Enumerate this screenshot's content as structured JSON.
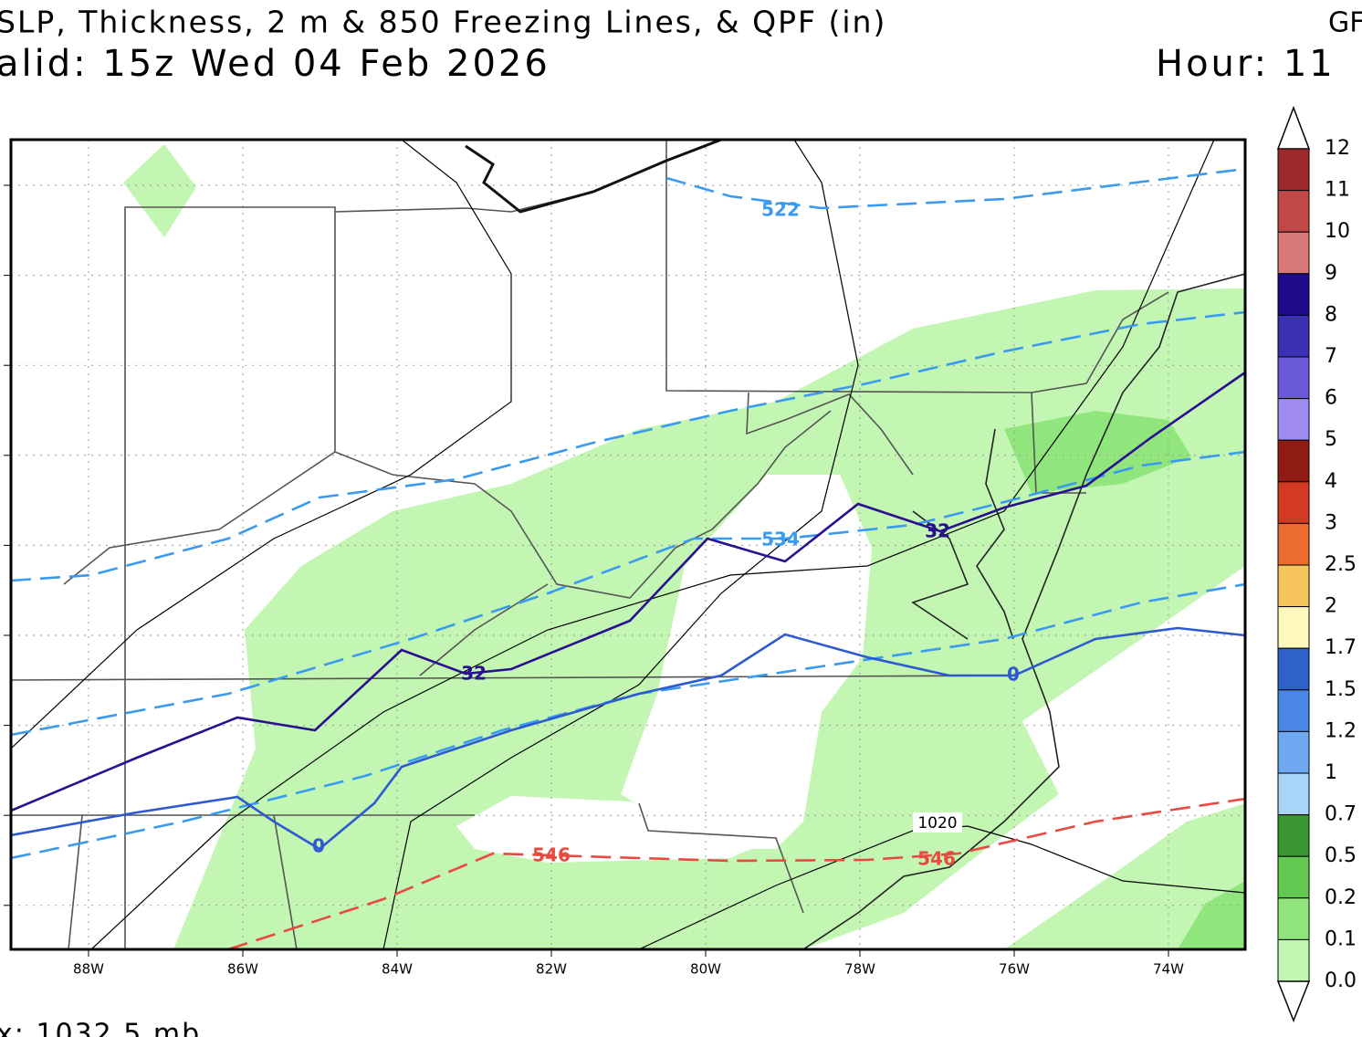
{
  "header": {
    "title": "SLP, Thickness, 2 m & 850 Freezing Lines, & QPF (in)",
    "model": "GF",
    "valid": "alid: 15z Wed 04 Feb 2026",
    "hour": "Hour: 11",
    "footer": "x: 1032.5 mb"
  },
  "map": {
    "longitude_labels": [
      "88W",
      "86W",
      "84W",
      "82W",
      "80W",
      "78W",
      "76W",
      "74W"
    ],
    "contour_labels": [
      "522",
      "534",
      "546",
      "546",
      "32",
      "32",
      "0",
      "0",
      "1020"
    ]
  },
  "colorbar": {
    "labels": [
      "12",
      "11",
      "10",
      "9",
      "8",
      "7",
      "6",
      "5",
      "4",
      "3",
      "2.5",
      "2",
      "1.7",
      "1.5",
      "1.2",
      "1",
      "0.7",
      "0.5",
      "0.2",
      "0.1",
      "0.0"
    ],
    "colors": [
      "#9c2a2a",
      "#c04848",
      "#d87878",
      "#200a8c",
      "#3a30b4",
      "#6a5ad8",
      "#a08cf0",
      "#901a14",
      "#d23a24",
      "#ec6c30",
      "#f6c45c",
      "#fff8bc",
      "#2e62c8",
      "#4a86e6",
      "#6ea8f0",
      "#a8d4f8",
      "#3a9630",
      "#62c852",
      "#90e67c",
      "#c2f6b2"
    ]
  }
}
